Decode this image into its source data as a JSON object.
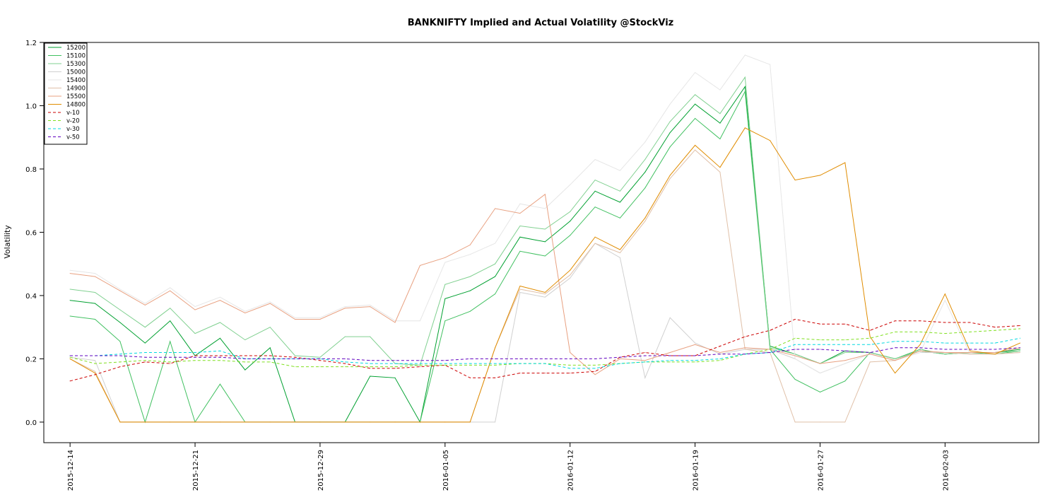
{
  "chart_data": {
    "type": "line",
    "title": "BANKNIFTY Implied and Actual Volatility @StockViz",
    "xlabel": "",
    "ylabel": "Volatility",
    "ylim": [
      -0.065,
      1.2
    ],
    "y_ticks": [
      0.0,
      0.2,
      0.4,
      0.6,
      0.8,
      1.0,
      1.2
    ],
    "y_tick_labels": [
      "0.0",
      "0.2",
      "0.4",
      "0.6",
      "0.8",
      "1.0",
      "1.2"
    ],
    "x_ticks": [
      0,
      5,
      10,
      15,
      20,
      25,
      30,
      35
    ],
    "x_tick_labels": [
      "2015-12-14",
      "2015-12-21",
      "2015-12-29",
      "2016-01-05",
      "2016-01-12",
      "2016-01-19",
      "2016-01-27",
      "2016-02-03"
    ],
    "xlim": [
      -1.05,
      38.75
    ],
    "grid": false,
    "legend_position": "top-left",
    "series": [
      {
        "name": "15200",
        "color": "#00a030",
        "dash": "",
        "values": [
          0.385,
          0.375,
          0.315,
          0.25,
          0.32,
          0.21,
          0.265,
          0.165,
          0.235,
          0.0,
          0.0,
          0.0,
          0.145,
          0.14,
          0.0,
          0.39,
          0.415,
          0.46,
          0.585,
          0.57,
          0.635,
          0.73,
          0.695,
          0.79,
          0.915,
          1.005,
          0.945,
          1.06,
          0.24,
          0.215,
          0.185,
          0.225,
          0.22,
          0.2,
          0.225,
          0.215,
          0.22,
          0.22,
          0.23
        ]
      },
      {
        "name": "15100",
        "color": "#40c060",
        "dash": "",
        "values": [
          0.335,
          0.325,
          0.255,
          0.0,
          0.255,
          0.0,
          0.12,
          0.0,
          0.0,
          0.0,
          0.0,
          0.0,
          0.0,
          0.0,
          0.0,
          0.32,
          0.35,
          0.405,
          0.54,
          0.525,
          0.59,
          0.68,
          0.645,
          0.74,
          0.87,
          0.96,
          0.895,
          1.045,
          0.23,
          0.135,
          0.095,
          0.13,
          0.22,
          0.2,
          0.23,
          0.215,
          0.22,
          0.215,
          0.225
        ]
      },
      {
        "name": "15300",
        "color": "#80d090",
        "dash": "",
        "values": [
          0.42,
          0.41,
          0.355,
          0.3,
          0.36,
          0.28,
          0.315,
          0.26,
          0.3,
          0.21,
          0.205,
          0.27,
          0.27,
          0.185,
          0.18,
          0.435,
          0.46,
          0.5,
          0.62,
          0.61,
          0.665,
          0.765,
          0.73,
          0.83,
          0.95,
          1.035,
          0.975,
          1.09,
          0.235,
          0.215,
          0.185,
          0.22,
          0.22,
          0.2,
          0.225,
          0.215,
          0.22,
          0.22,
          0.225
        ]
      },
      {
        "name": "15000",
        "color": "#d0d0d0",
        "dash": "",
        "values": [
          0.205,
          0.195,
          0.0,
          0.0,
          0.0,
          0.0,
          0.0,
          0.0,
          0.0,
          0.0,
          0.0,
          0.0,
          0.0,
          0.0,
          0.0,
          0.0,
          0.0,
          0.0,
          0.41,
          0.395,
          0.455,
          0.565,
          0.52,
          0.14,
          0.33,
          0.25,
          0.215,
          0.23,
          0.23,
          0.2,
          0.155,
          0.185,
          0.215,
          0.195,
          0.22,
          0.22,
          0.215,
          0.215,
          0.22
        ]
      },
      {
        "name": "15400",
        "color": "#e6e6e6",
        "dash": "",
        "values": [
          0.48,
          0.47,
          0.42,
          0.375,
          0.425,
          0.365,
          0.395,
          0.35,
          0.38,
          0.33,
          0.33,
          0.365,
          0.37,
          0.32,
          0.32,
          0.505,
          0.53,
          0.565,
          0.69,
          0.675,
          0.75,
          0.83,
          0.795,
          0.885,
          1.005,
          1.105,
          1.05,
          1.16,
          1.13,
          0.2,
          0.155,
          0.185,
          0.215,
          0.195,
          0.22,
          0.385,
          0.215,
          0.215,
          0.22
        ]
      },
      {
        "name": "14900",
        "color": "#e0c0a8",
        "dash": "",
        "values": [
          0.2,
          0.16,
          0.0,
          0.0,
          0.0,
          0.0,
          0.0,
          0.0,
          0.0,
          0.0,
          0.0,
          0.0,
          0.0,
          0.0,
          0.0,
          0.0,
          0.0,
          0.235,
          0.42,
          0.405,
          0.465,
          0.565,
          0.535,
          0.635,
          0.77,
          0.86,
          0.79,
          0.23,
          0.22,
          0.0,
          0.0,
          0.0,
          0.19,
          0.195,
          0.225,
          0.22,
          0.215,
          0.215,
          0.22
        ]
      },
      {
        "name": "15500",
        "color": "#e8a080",
        "dash": "",
        "values": [
          0.47,
          0.46,
          0.415,
          0.37,
          0.415,
          0.355,
          0.385,
          0.345,
          0.375,
          0.325,
          0.325,
          0.36,
          0.365,
          0.315,
          0.495,
          0.52,
          0.56,
          0.675,
          0.66,
          0.72,
          0.22,
          0.15,
          0.2,
          0.195,
          0.22,
          0.245,
          0.22,
          0.235,
          0.23,
          0.21,
          0.185,
          0.195,
          0.215,
          0.195,
          0.225,
          0.22,
          0.22,
          0.22,
          0.235
        ]
      },
      {
        "name": "14800",
        "color": "#e08c00",
        "dash": "",
        "values": [
          0.2,
          0.155,
          0.0,
          0.0,
          0.0,
          0.0,
          0.0,
          0.0,
          0.0,
          0.0,
          0.0,
          0.0,
          0.0,
          0.0,
          0.0,
          0.0,
          0.0,
          0.235,
          0.43,
          0.41,
          0.48,
          0.585,
          0.545,
          0.645,
          0.78,
          0.875,
          0.805,
          0.93,
          0.89,
          0.765,
          0.78,
          0.82,
          0.27,
          0.155,
          0.245,
          0.405,
          0.225,
          0.215,
          0.25
        ]
      },
      {
        "name": "v-10",
        "color": "#cc0000",
        "dash": "4,3",
        "values": [
          0.13,
          0.15,
          0.175,
          0.19,
          0.185,
          0.21,
          0.21,
          0.21,
          0.21,
          0.205,
          0.195,
          0.185,
          0.17,
          0.17,
          0.175,
          0.18,
          0.14,
          0.14,
          0.155,
          0.155,
          0.155,
          0.16,
          0.205,
          0.22,
          0.21,
          0.21,
          0.24,
          0.27,
          0.29,
          0.325,
          0.31,
          0.31,
          0.29,
          0.32,
          0.32,
          0.315,
          0.315,
          0.3,
          0.305
        ]
      },
      {
        "name": "v-20",
        "color": "#80e020",
        "dash": "4,3",
        "values": [
          0.205,
          0.185,
          0.19,
          0.195,
          0.19,
          0.195,
          0.195,
          0.19,
          0.19,
          0.175,
          0.175,
          0.175,
          0.175,
          0.175,
          0.18,
          0.18,
          0.18,
          0.18,
          0.185,
          0.185,
          0.18,
          0.18,
          0.185,
          0.19,
          0.19,
          0.19,
          0.195,
          0.215,
          0.23,
          0.265,
          0.26,
          0.26,
          0.265,
          0.285,
          0.285,
          0.28,
          0.285,
          0.29,
          0.295
        ]
      },
      {
        "name": "v-30",
        "color": "#00d8e0",
        "dash": "4,3",
        "values": [
          0.21,
          0.21,
          0.215,
          0.22,
          0.22,
          0.22,
          0.225,
          0.2,
          0.2,
          0.2,
          0.2,
          0.19,
          0.185,
          0.185,
          0.185,
          0.185,
          0.185,
          0.185,
          0.185,
          0.185,
          0.17,
          0.17,
          0.185,
          0.19,
          0.195,
          0.195,
          0.2,
          0.215,
          0.22,
          0.245,
          0.245,
          0.245,
          0.245,
          0.255,
          0.255,
          0.25,
          0.25,
          0.25,
          0.265
        ]
      },
      {
        "name": "v-50",
        "color": "#6000c0",
        "dash": "4,3",
        "values": [
          0.21,
          0.21,
          0.21,
          0.205,
          0.205,
          0.205,
          0.205,
          0.2,
          0.2,
          0.2,
          0.2,
          0.2,
          0.195,
          0.195,
          0.195,
          0.195,
          0.2,
          0.2,
          0.2,
          0.2,
          0.2,
          0.2,
          0.205,
          0.21,
          0.21,
          0.21,
          0.215,
          0.215,
          0.22,
          0.23,
          0.23,
          0.225,
          0.22,
          0.235,
          0.235,
          0.23,
          0.23,
          0.23,
          0.235
        ]
      }
    ]
  }
}
